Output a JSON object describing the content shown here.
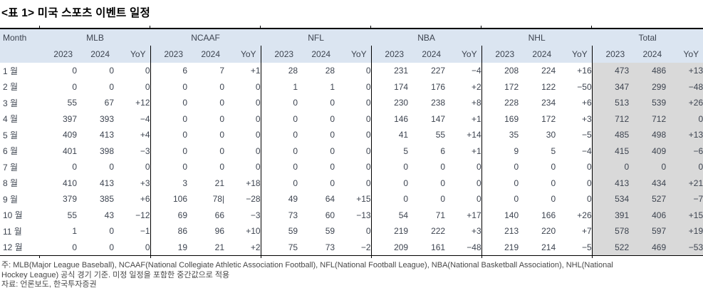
{
  "title": "<표 1> 미국 스포츠 이벤트 일정",
  "table": {
    "month_header": "Month",
    "groups": [
      "MLB",
      "NCAAF",
      "NFL",
      "NBA",
      "NHL",
      "Total"
    ],
    "sub_headers": [
      "2023",
      "2024",
      "YoY"
    ],
    "rows": [
      {
        "month": "1 월",
        "values": [
          "0",
          "0",
          "0",
          "6",
          "7",
          "+1",
          "28",
          "28",
          "0",
          "231",
          "227",
          "−4",
          "208",
          "224",
          "+16",
          "473",
          "486",
          "+13"
        ]
      },
      {
        "month": "2 월",
        "values": [
          "0",
          "0",
          "0",
          "0",
          "0",
          "0",
          "1",
          "1",
          "0",
          "174",
          "176",
          "+2",
          "172",
          "122",
          "−50",
          "347",
          "299",
          "−48"
        ]
      },
      {
        "month": "3 월",
        "values": [
          "55",
          "67",
          "+12",
          "0",
          "0",
          "0",
          "0",
          "0",
          "0",
          "230",
          "238",
          "+8",
          "228",
          "234",
          "+6",
          "513",
          "539",
          "+26"
        ]
      },
      {
        "month": "4 월",
        "values": [
          "397",
          "393",
          "−4",
          "0",
          "0",
          "0",
          "0",
          "0",
          "0",
          "146",
          "147",
          "+1",
          "169",
          "172",
          "+3",
          "712",
          "712",
          "0"
        ]
      },
      {
        "month": "5 월",
        "values": [
          "409",
          "413",
          "+4",
          "0",
          "0",
          "0",
          "0",
          "0",
          "0",
          "41",
          "55",
          "+14",
          "35",
          "30",
          "−5",
          "485",
          "498",
          "+13"
        ]
      },
      {
        "month": "6 월",
        "values": [
          "401",
          "398",
          "−3",
          "0",
          "0",
          "0",
          "0",
          "0",
          "0",
          "5",
          "6",
          "+1",
          "9",
          "5",
          "−4",
          "415",
          "409",
          "−6"
        ]
      },
      {
        "month": "7 월",
        "values": [
          "0",
          "0",
          "0",
          "0",
          "0",
          "0",
          "0",
          "0",
          "0",
          "0",
          "0",
          "0",
          "0",
          "0",
          "0",
          "0",
          "0",
          "0"
        ]
      },
      {
        "month": "8 월",
        "values": [
          "410",
          "413",
          "+3",
          "3",
          "21",
          "+18",
          "0",
          "0",
          "0",
          "0",
          "0",
          "0",
          "0",
          "0",
          "0",
          "413",
          "434",
          "+21"
        ]
      },
      {
        "month": "9 월",
        "values": [
          "379",
          "385",
          "+6",
          "106",
          "78|",
          "−28",
          "49",
          "64",
          "+15",
          "0",
          "0",
          "0",
          "0",
          "0",
          "0",
          "534",
          "527",
          "−7"
        ]
      },
      {
        "month": "10 월",
        "values": [
          "55",
          "43",
          "−12",
          "69",
          "66",
          "−3",
          "73",
          "60",
          "−13",
          "54",
          "71",
          "+17",
          "140",
          "166",
          "+26",
          "391",
          "406",
          "+15"
        ]
      },
      {
        "month": "11 월",
        "values": [
          "1",
          "0",
          "−1",
          "86",
          "96",
          "+10",
          "59",
          "59",
          "0",
          "219",
          "222",
          "+3",
          "213",
          "220",
          "+7",
          "578",
          "597",
          "+19"
        ]
      },
      {
        "month": "12 월",
        "values": [
          "0",
          "0",
          "0",
          "19",
          "21",
          "+2",
          "75",
          "73",
          "−2",
          "209",
          "161",
          "−48",
          "219",
          "214",
          "−5",
          "522",
          "469",
          "−53"
        ]
      }
    ]
  },
  "footnote": {
    "line1": "주: MLB(Major League Baseball), NCAAF(National Collegiate Athletic Association Football), NFL(National Football League), NBA(National Basketball Association), NHL(National",
    "line2": "Hockey League) 공식 경기 기준. 미정 일정을 포함한 중간값으로 적용",
    "line3": "자료: 언론보도, 한국투자증권"
  },
  "colors": {
    "header_bg": "#dbe5f1",
    "total_bg": "#d9d9d9",
    "rule": "#000000",
    "text": "#3d4450"
  }
}
